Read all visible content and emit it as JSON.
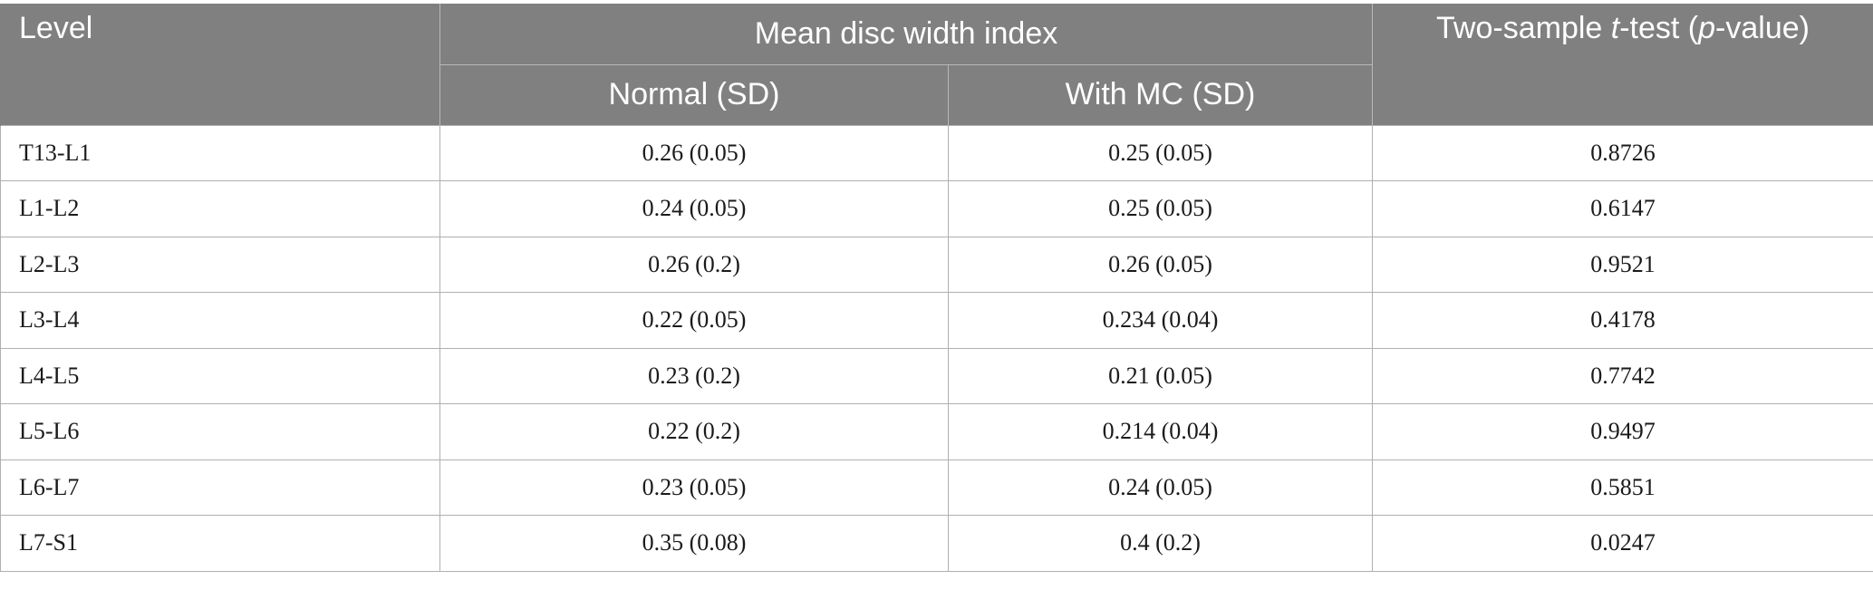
{
  "table": {
    "header": {
      "level": "Level",
      "group": "Mean disc width index",
      "normal": "Normal (SD)",
      "with_mc": "With MC (SD)",
      "ttest_prefix": "Two-sample ",
      "ttest_t": "t",
      "ttest_mid": "-test (",
      "ttest_p": "p",
      "ttest_suffix": "-value)"
    },
    "rows": [
      {
        "level": "T13-L1",
        "normal": "0.26 (0.05)",
        "with_mc": "0.25 (0.05)",
        "p": "0.8726"
      },
      {
        "level": "L1-L2",
        "normal": "0.24 (0.05)",
        "with_mc": "0.25 (0.05)",
        "p": "0.6147"
      },
      {
        "level": "L2-L3",
        "normal": "0.26 (0.2)",
        "with_mc": "0.26 (0.05)",
        "p": "0.9521"
      },
      {
        "level": "L3-L4",
        "normal": "0.22 (0.05)",
        "with_mc": "0.234 (0.04)",
        "p": "0.4178"
      },
      {
        "level": "L4-L5",
        "normal": "0.23 (0.2)",
        "with_mc": "0.21 (0.05)",
        "p": "0.7742"
      },
      {
        "level": "L5-L6",
        "normal": "0.22 (0.2)",
        "with_mc": "0.214 (0.04)",
        "p": "0.9497"
      },
      {
        "level": "L6-L7",
        "normal": "0.23 (0.05)",
        "with_mc": "0.24 (0.05)",
        "p": "0.5851"
      },
      {
        "level": "L7-S1",
        "normal": "0.35 (0.08)",
        "with_mc": "0.4 (0.2)",
        "p": "0.0247"
      }
    ]
  },
  "colors": {
    "header_bg": "#808080",
    "header_text": "#ffffff",
    "grid_line": "#b0b0b0"
  }
}
